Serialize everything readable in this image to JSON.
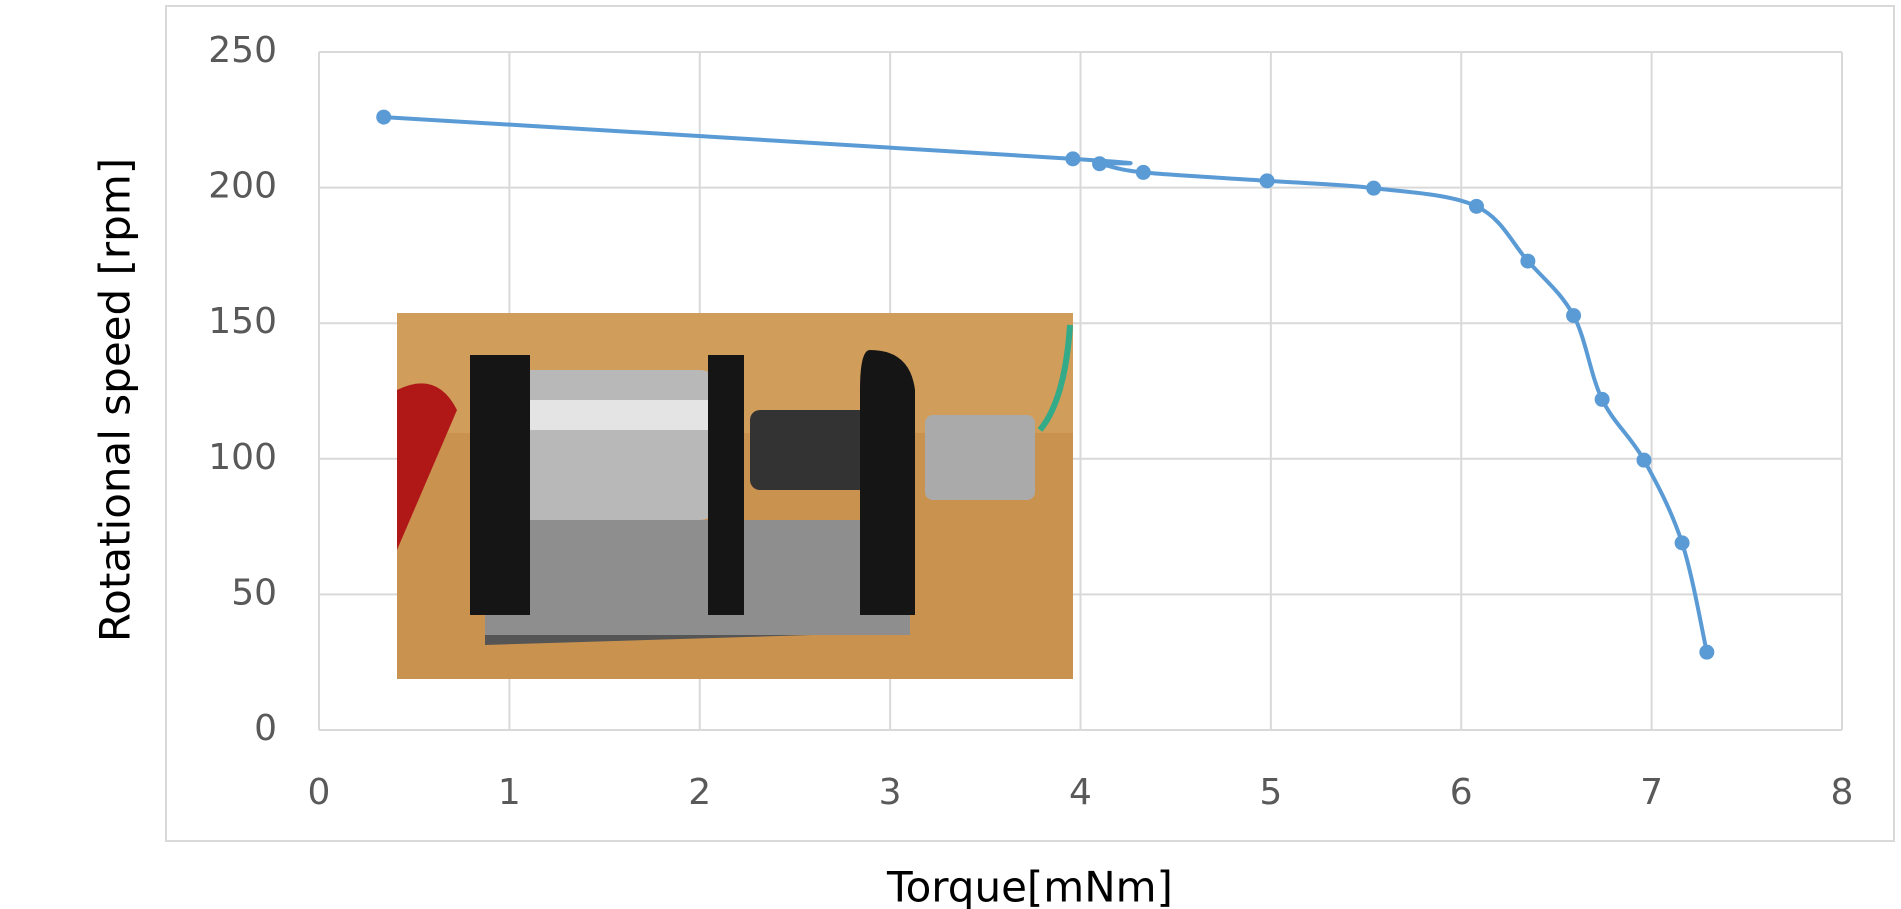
{
  "chart_data": {
    "type": "line",
    "xlabel": "Torque[mNm]",
    "ylabel": "Rotational speed [rpm]",
    "x": [
      0.34,
      3.96,
      4.1,
      4.33,
      4.98,
      5.54,
      6.08,
      6.35,
      6.59,
      6.74,
      6.96,
      7.16,
      7.29
    ],
    "series": [
      {
        "color": "#5b9bd5",
        "values": [
          226,
          210.6,
          208.8,
          205.6,
          202.5,
          199.8,
          193.1,
          172.9,
          152.8,
          121.9,
          99.5,
          69.0,
          28.7
        ]
      }
    ],
    "xlim": [
      0,
      8
    ],
    "xticks": [
      0,
      1,
      2,
      3,
      4,
      5,
      6,
      7,
      8
    ],
    "ylim": [
      0,
      250
    ],
    "yticks": [
      0,
      50,
      100,
      150,
      200,
      250
    ],
    "grid": true
  }
}
